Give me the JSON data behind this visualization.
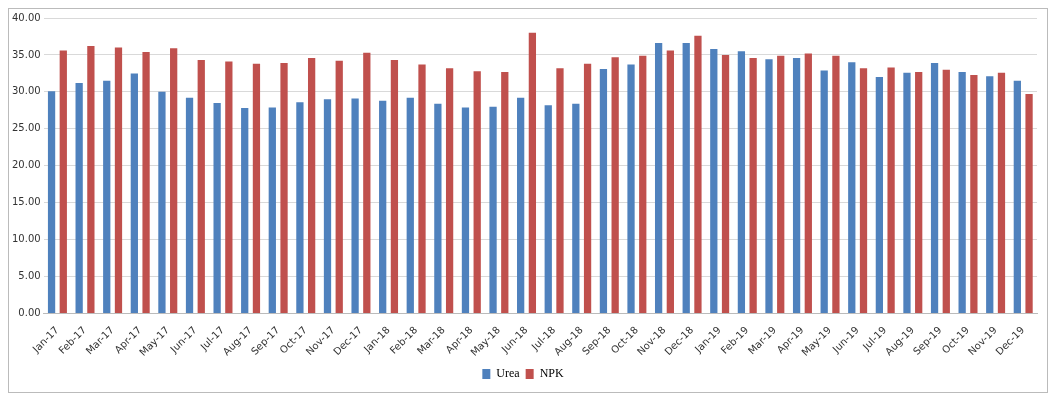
{
  "chart_data": {
    "type": "bar",
    "categories": [
      "Jan-17",
      "Feb-17",
      "Mar-17",
      "Apr-17",
      "May-17",
      "Jun-17",
      "Jul-17",
      "Aug-17",
      "Sep-17",
      "Oct-17",
      "Nov-17",
      "Dec-17",
      "Jan-18",
      "Feb-18",
      "Mar-18",
      "Apr-18",
      "May-18",
      "Jun-18",
      "Jul-18",
      "Aug-18",
      "Sep-18",
      "Oct-18",
      "Nov-18",
      "Dec-18",
      "Jan-19",
      "Feb-19",
      "Mar-19",
      "Apr-19",
      "May-19",
      "Jun-19",
      "Jul-19",
      "Aug-19",
      "Sep-19",
      "Oct-19",
      "Nov-19",
      "Dec-19"
    ],
    "series": [
      {
        "name": "Urea",
        "color": "#4f81bd",
        "values": [
          30.1,
          31.2,
          31.5,
          32.5,
          30.0,
          29.2,
          28.5,
          27.8,
          27.9,
          28.6,
          29.0,
          29.1,
          28.8,
          29.2,
          28.4,
          27.9,
          28.0,
          29.2,
          28.2,
          28.4,
          33.1,
          33.7,
          36.6,
          36.6,
          35.8,
          35.5,
          34.4,
          34.6,
          32.9,
          34.0,
          32.0,
          32.6,
          33.9,
          32.7,
          32.1,
          31.5
        ]
      },
      {
        "name": "NPK",
        "color": "#c0504d",
        "values": [
          35.6,
          36.2,
          36.0,
          35.4,
          35.9,
          34.3,
          34.1,
          33.8,
          33.9,
          34.6,
          34.2,
          35.3,
          34.3,
          33.7,
          33.2,
          32.8,
          32.7,
          38.0,
          33.2,
          33.8,
          34.7,
          34.9,
          35.6,
          37.6,
          35.0,
          34.6,
          34.9,
          35.2,
          34.9,
          33.2,
          33.3,
          32.7,
          33.0,
          32.3,
          32.6,
          29.7
        ]
      }
    ],
    "ylim": [
      0,
      40
    ],
    "yticks": [
      {
        "value": 0,
        "label": "0.00"
      },
      {
        "value": 5,
        "label": "5.00"
      },
      {
        "value": 10,
        "label": "10.00"
      },
      {
        "value": 15,
        "label": "15.00"
      },
      {
        "value": 20,
        "label": "20.00"
      },
      {
        "value": 25,
        "label": "25.00"
      },
      {
        "value": 30,
        "label": "30.00"
      },
      {
        "value": 35,
        "label": "35.00"
      },
      {
        "value": 40,
        "label": "40.00"
      }
    ],
    "grid": "y",
    "legend": "bottom"
  }
}
